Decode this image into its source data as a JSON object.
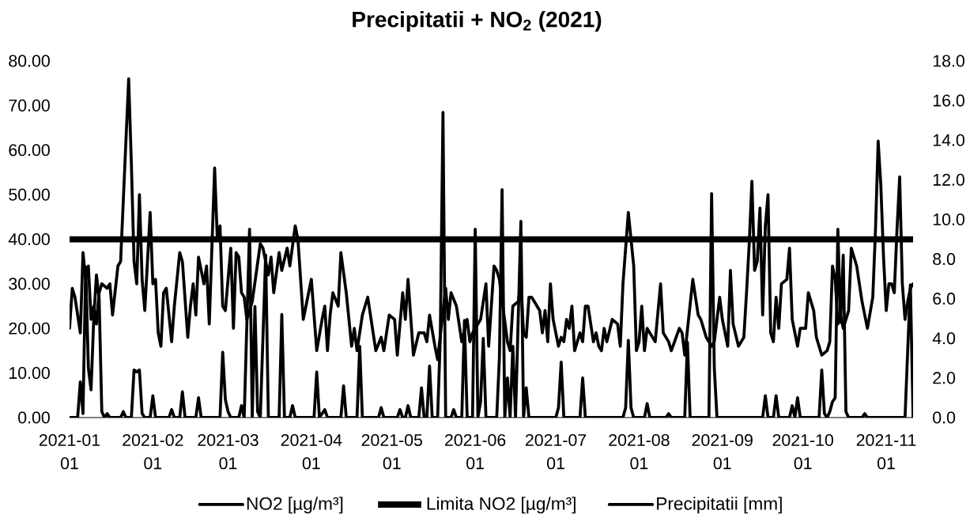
{
  "chart_data": {
    "type": "line",
    "title": "Precipitatii + NO$_{2}$ (2021)",
    "xlim": [
      "2021-01-01",
      "2021-11-11"
    ],
    "xticks": [
      {
        "value": "2021-01-01",
        "label": "2021-01 01"
      },
      {
        "value": "2021-02-01",
        "label": "2021-02 01"
      },
      {
        "value": "2021-03-01",
        "label": "2021-03 01"
      },
      {
        "value": "2021-04-01",
        "label": "2021-04 01"
      },
      {
        "value": "2021-05-01",
        "label": "2021-05 01"
      },
      {
        "value": "2021-06-01",
        "label": "2021-06 01"
      },
      {
        "value": "2021-07-01",
        "label": "2021-07 01"
      },
      {
        "value": "2021-08-01",
        "label": "2021-08 01"
      },
      {
        "value": "2021-09-01",
        "label": "2021-09 01"
      },
      {
        "value": "2021-10-01",
        "label": "2021-10 01"
      },
      {
        "value": "2021-11-01",
        "label": "2021-11 01"
      }
    ],
    "ylim": [
      0,
      80
    ],
    "yticks": [
      {
        "value": 0,
        "label": "0.00"
      },
      {
        "value": 10,
        "label": "10.00"
      },
      {
        "value": 20,
        "label": "20.00"
      },
      {
        "value": 30,
        "label": "30.00"
      },
      {
        "value": 40,
        "label": "40.00"
      },
      {
        "value": 50,
        "label": "50.00"
      },
      {
        "value": 60,
        "label": "60.00"
      },
      {
        "value": 70,
        "label": "70.00"
      },
      {
        "value": 80,
        "label": "80.00"
      }
    ],
    "y2lim": [
      0,
      18
    ],
    "y2ticks": [
      {
        "value": 0,
        "label": "0.0"
      },
      {
        "value": 2,
        "label": "2.0"
      },
      {
        "value": 4,
        "label": "4.0"
      },
      {
        "value": 6,
        "label": "6.0"
      },
      {
        "value": 8,
        "label": "8.0"
      },
      {
        "value": 10,
        "label": "10.0"
      },
      {
        "value": 12,
        "label": "12.0"
      },
      {
        "value": 14,
        "label": "14.0"
      },
      {
        "value": 16,
        "label": "16.0"
      },
      {
        "value": 18,
        "label": "18.0"
      }
    ],
    "series": [
      {
        "name": "NO2 [µg/m³]",
        "color": "#000000",
        "x": [
          "2021-01-01",
          "2021-01-02",
          "2021-01-03",
          "2021-01-05",
          "2021-01-06",
          "2021-01-07",
          "2021-01-08",
          "2021-01-09",
          "2021-01-10",
          "2021-01-11",
          "2021-01-12",
          "2021-01-13",
          "2021-01-15",
          "2021-01-16",
          "2021-01-17",
          "2021-01-19",
          "2021-01-20",
          "2021-01-23",
          "2021-01-24",
          "2021-01-25",
          "2021-01-26",
          "2021-01-27",
          "2021-01-28",
          "2021-01-29",
          "2021-01-30",
          "2021-01-31",
          "2021-02-01",
          "2021-02-02",
          "2021-02-03",
          "2021-02-04",
          "2021-02-05",
          "2021-02-06",
          "2021-02-08",
          "2021-02-09",
          "2021-02-11",
          "2021-02-12",
          "2021-02-14",
          "2021-02-15",
          "2021-02-16",
          "2021-02-17",
          "2021-02-18",
          "2021-02-20",
          "2021-02-21",
          "2021-02-22",
          "2021-02-24",
          "2021-02-25",
          "2021-02-26",
          "2021-02-27",
          "2021-02-28",
          "2021-03-02",
          "2021-03-03",
          "2021-03-04",
          "2021-03-05",
          "2021-03-06",
          "2021-03-07",
          "2021-03-08",
          "2021-03-10",
          "2021-03-13",
          "2021-03-14",
          "2021-03-16",
          "2021-03-17",
          "2021-03-18",
          "2021-03-20",
          "2021-03-21",
          "2021-03-23",
          "2021-03-24",
          "2021-03-26",
          "2021-03-27",
          "2021-03-29",
          "2021-04-01",
          "2021-04-03",
          "2021-04-05",
          "2021-04-06",
          "2021-04-07",
          "2021-04-08",
          "2021-04-09",
          "2021-04-11",
          "2021-04-12",
          "2021-04-14",
          "2021-04-16",
          "2021-04-17",
          "2021-04-18",
          "2021-04-20",
          "2021-04-22",
          "2021-04-25",
          "2021-04-27",
          "2021-04-28",
          "2021-04-30",
          "2021-05-02",
          "2021-05-03",
          "2021-05-05",
          "2021-05-06",
          "2021-05-07",
          "2021-05-09",
          "2021-05-11",
          "2021-05-13",
          "2021-05-14",
          "2021-05-15",
          "2021-05-17",
          "2021-05-18",
          "2021-05-21",
          "2021-05-22",
          "2021-05-23",
          "2021-05-25",
          "2021-05-27",
          "2021-05-29",
          "2021-05-30",
          "2021-05-31",
          "2021-06-03",
          "2021-06-05",
          "2021-06-06",
          "2021-06-08",
          "2021-06-09",
          "2021-06-10",
          "2021-06-13",
          "2021-06-14",
          "2021-06-15",
          "2021-06-17",
          "2021-06-18",
          "2021-06-19",
          "2021-06-20",
          "2021-06-21",
          "2021-06-22",
          "2021-06-24",
          "2021-06-25",
          "2021-06-26",
          "2021-06-27",
          "2021-06-28",
          "2021-06-29",
          "2021-06-30",
          "2021-07-02",
          "2021-07-03",
          "2021-07-04",
          "2021-07-05",
          "2021-07-06",
          "2021-07-07",
          "2021-07-08",
          "2021-07-10",
          "2021-07-11",
          "2021-07-12",
          "2021-07-13",
          "2021-07-15",
          "2021-07-16",
          "2021-07-17",
          "2021-07-18",
          "2021-07-19",
          "2021-07-20",
          "2021-07-22",
          "2021-07-24",
          "2021-07-25",
          "2021-07-26",
          "2021-07-28",
          "2021-07-30",
          "2021-07-31",
          "2021-08-01",
          "2021-08-02",
          "2021-08-03",
          "2021-08-04",
          "2021-08-05",
          "2021-08-07",
          "2021-08-09",
          "2021-08-10",
          "2021-08-12",
          "2021-08-13",
          "2021-08-16",
          "2021-08-17",
          "2021-08-18",
          "2021-08-21",
          "2021-08-23",
          "2021-08-24",
          "2021-08-26",
          "2021-08-28",
          "2021-08-29",
          "2021-08-31",
          "2021-09-01",
          "2021-09-03",
          "2021-09-04",
          "2021-09-05",
          "2021-09-07",
          "2021-09-09",
          "2021-09-10",
          "2021-09-11",
          "2021-09-12",
          "2021-09-13",
          "2021-09-14",
          "2021-09-15",
          "2021-09-16",
          "2021-09-17",
          "2021-09-18",
          "2021-09-19",
          "2021-09-20",
          "2021-09-21",
          "2021-09-22",
          "2021-09-23",
          "2021-09-25",
          "2021-09-26",
          "2021-09-27",
          "2021-09-29",
          "2021-09-30",
          "2021-10-02",
          "2021-10-03",
          "2021-10-05",
          "2021-10-06",
          "2021-10-08",
          "2021-10-10",
          "2021-10-11",
          "2021-10-12",
          "2021-10-13",
          "2021-10-14",
          "2021-10-15",
          "2021-10-16",
          "2021-10-18",
          "2021-10-19",
          "2021-10-21",
          "2021-10-23",
          "2021-10-25",
          "2021-10-27",
          "2021-10-28",
          "2021-10-29",
          "2021-10-30",
          "2021-10-31",
          "2021-11-01",
          "2021-11-02",
          "2021-11-03",
          "2021-11-04",
          "2021-11-05",
          "2021-11-06",
          "2021-11-07",
          "2021-11-08",
          "2021-11-09",
          "2021-11-10",
          "2021-11-11"
        ],
        "values": [
          20,
          29,
          27,
          19,
          37,
          31,
          34,
          22,
          25,
          21,
          28,
          30,
          29,
          30,
          23,
          34,
          35,
          76,
          57,
          35,
          30,
          50,
          31,
          24,
          35,
          46,
          30,
          31,
          19,
          16,
          28,
          29,
          17,
          25,
          37,
          35,
          18,
          25,
          30,
          23,
          36,
          30,
          34,
          21,
          56,
          40,
          43,
          25,
          24,
          38,
          20,
          37,
          36,
          28,
          27,
          22,
          26,
          39,
          38,
          32,
          36,
          28,
          37,
          33,
          38,
          34,
          43,
          40,
          22,
          31,
          15,
          22,
          25,
          15,
          23,
          28,
          25,
          37,
          28,
          16,
          20,
          15,
          23,
          27,
          15,
          18,
          15,
          23,
          22,
          14,
          28,
          22,
          31,
          14,
          19,
          19,
          17,
          23,
          16,
          13,
          29,
          22,
          28,
          25,
          17,
          22,
          17,
          19,
          22,
          30,
          16,
          34,
          33,
          31,
          17,
          15,
          25,
          26,
          30,
          19,
          18,
          27,
          27,
          25,
          24,
          19,
          24,
          17,
          30,
          22,
          16,
          18,
          17,
          22,
          20,
          25,
          15,
          19,
          17,
          25,
          25,
          17,
          19,
          16,
          15,
          20,
          17,
          22,
          21,
          16,
          30,
          46,
          34,
          15,
          17,
          25,
          15,
          20,
          19,
          17,
          30,
          19,
          17,
          15,
          20,
          19,
          14,
          31,
          23,
          22,
          18,
          16,
          17,
          27,
          22,
          16,
          33,
          21,
          16,
          18,
          28,
          39,
          53,
          33,
          35,
          47,
          23,
          43,
          50,
          19,
          17,
          27,
          20,
          30,
          31,
          38,
          22,
          16,
          20,
          20,
          28,
          24,
          18,
          14,
          15,
          17,
          34,
          31,
          21,
          23,
          20,
          24,
          38,
          34,
          26,
          20,
          27,
          42,
          62,
          52,
          36,
          24,
          30,
          30,
          28,
          42,
          54,
          30,
          22,
          26,
          29,
          30
        ]
      },
      {
        "name": "Precipitatii [mm]",
        "color": "#000000",
        "axis": "y2",
        "x": [
          "2021-01-01",
          "2021-01-04",
          "2021-01-05",
          "2021-01-06",
          "2021-01-07",
          "2021-01-08",
          "2021-01-09",
          "2021-01-10",
          "2021-01-11",
          "2021-01-12",
          "2021-01-13",
          "2021-01-14",
          "2021-01-15",
          "2021-01-16",
          "2021-01-20",
          "2021-01-21",
          "2021-01-22",
          "2021-01-24",
          "2021-01-25",
          "2021-01-26",
          "2021-01-27",
          "2021-01-28",
          "2021-01-29",
          "2021-01-31",
          "2021-02-01",
          "2021-02-02",
          "2021-02-07",
          "2021-02-08",
          "2021-02-09",
          "2021-02-11",
          "2021-02-12",
          "2021-02-13",
          "2021-02-17",
          "2021-02-18",
          "2021-02-19",
          "2021-02-26",
          "2021-02-27",
          "2021-02-28",
          "2021-03-01",
          "2021-03-02",
          "2021-03-05",
          "2021-03-06",
          "2021-03-07",
          "2021-03-09",
          "2021-03-10",
          "2021-03-11",
          "2021-03-12",
          "2021-03-13",
          "2021-03-15",
          "2021-03-16",
          "2021-03-20",
          "2021-03-21",
          "2021-03-22",
          "2021-03-24",
          "2021-03-25",
          "2021-03-26",
          "2021-04-02",
          "2021-04-03",
          "2021-04-04",
          "2021-04-06",
          "2021-04-07",
          "2021-04-12",
          "2021-04-13",
          "2021-04-14",
          "2021-04-18",
          "2021-04-19",
          "2021-04-20",
          "2021-04-26",
          "2021-04-27",
          "2021-04-28",
          "2021-05-03",
          "2021-05-04",
          "2021-05-05",
          "2021-05-06",
          "2021-05-07",
          "2021-05-08",
          "2021-05-11",
          "2021-05-12",
          "2021-05-13",
          "2021-05-14",
          "2021-05-15",
          "2021-05-16",
          "2021-05-18",
          "2021-05-19",
          "2021-05-20",
          "2021-05-21",
          "2021-05-23",
          "2021-05-24",
          "2021-05-25",
          "2021-05-27",
          "2021-05-28",
          "2021-05-29",
          "2021-05-31",
          "2021-06-01",
          "2021-06-02",
          "2021-06-03",
          "2021-06-04",
          "2021-06-05",
          "2021-06-09",
          "2021-06-10",
          "2021-06-11",
          "2021-06-12",
          "2021-06-13",
          "2021-06-14",
          "2021-06-15",
          "2021-06-16",
          "2021-06-18",
          "2021-06-19",
          "2021-06-20",
          "2021-06-21",
          "2021-07-01",
          "2021-07-02",
          "2021-07-03",
          "2021-07-04",
          "2021-07-10",
          "2021-07-11",
          "2021-07-12",
          "2021-07-26",
          "2021-07-27",
          "2021-07-28",
          "2021-07-29",
          "2021-07-30",
          "2021-08-03",
          "2021-08-04",
          "2021-08-05",
          "2021-08-11",
          "2021-08-12",
          "2021-08-13",
          "2021-08-18",
          "2021-08-19",
          "2021-08-20",
          "2021-08-27",
          "2021-08-28",
          "2021-08-29",
          "2021-08-30",
          "2021-09-16",
          "2021-09-17",
          "2021-09-18",
          "2021-09-20",
          "2021-09-21",
          "2021-09-22",
          "2021-09-26",
          "2021-09-27",
          "2021-09-28",
          "2021-09-29",
          "2021-09-30",
          "2021-10-07",
          "2021-10-08",
          "2021-10-09",
          "2021-10-10",
          "2021-10-11",
          "2021-10-12",
          "2021-10-13",
          "2021-10-14",
          "2021-10-15",
          "2021-10-16",
          "2021-10-17",
          "2021-10-18",
          "2021-10-23",
          "2021-10-24",
          "2021-10-25",
          "2021-11-08",
          "2021-11-09",
          "2021-11-10",
          "2021-11-11"
        ],
        "values": [
          0,
          0,
          1.8,
          0.2,
          7.6,
          2.5,
          1.4,
          5.0,
          7.2,
          6.0,
          0.3,
          0,
          0.2,
          0,
          0,
          0.3,
          0,
          0,
          2.4,
          2.3,
          2.4,
          0.2,
          0,
          0,
          1.1,
          0,
          0,
          0.4,
          0,
          0,
          1.3,
          0,
          0,
          1.0,
          0,
          0,
          3.3,
          0.9,
          0.3,
          0,
          0,
          0.6,
          0,
          9.5,
          0,
          5.6,
          0.3,
          0,
          8.2,
          0,
          0,
          5.2,
          0,
          0,
          0.6,
          0,
          0,
          2.3,
          0,
          0.4,
          0,
          0,
          1.6,
          0,
          0,
          3.6,
          0,
          0,
          0.5,
          0,
          0,
          0.4,
          0,
          0,
          0.6,
          0,
          0,
          1.5,
          0,
          0,
          2.6,
          0,
          0,
          4.0,
          15.4,
          0,
          0,
          0.4,
          0,
          0,
          4.9,
          0,
          0,
          9.5,
          0,
          0.8,
          4.0,
          0,
          0,
          3.0,
          11.5,
          0,
          2.0,
          0,
          3.6,
          0,
          9.9,
          0,
          1.5,
          0,
          0,
          0.5,
          2.8,
          0,
          0,
          2.0,
          0,
          0,
          0.5,
          3.9,
          0.5,
          0,
          0,
          0.7,
          0,
          0,
          0.2,
          0,
          0,
          3.8,
          0,
          0,
          11.3,
          2.5,
          0,
          0,
          1.1,
          0,
          0,
          1.1,
          0,
          0,
          0.6,
          0,
          1.0,
          0,
          0,
          2.4,
          0.2,
          0,
          0.3,
          0.8,
          1.0,
          9.5,
          4.8,
          8.2,
          0.3,
          0,
          0,
          0.2,
          0,
          0,
          3.4,
          6.7,
          0
        ]
      }
    ],
    "ref_lines": [
      {
        "axis": "y",
        "value": 40,
        "label": "Limita NO2 [µg/m³]",
        "color": "#000000"
      }
    ],
    "legend": "bottom"
  }
}
